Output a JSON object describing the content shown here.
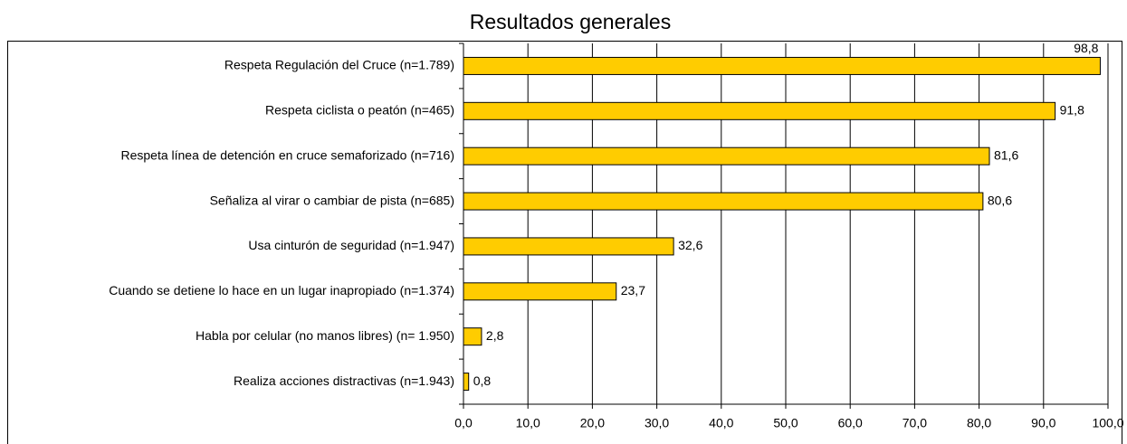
{
  "chart_data": {
    "type": "barh",
    "title": "Resultados generales",
    "categories": [
      "Respeta Regulación del Cruce (n=1.789)",
      "Respeta ciclista o peatón (n=465)",
      "Respeta línea de detención en cruce semaforizado (n=716)",
      "Señaliza al virar o cambiar de pista (n=685)",
      "Usa cinturón de seguridad (n=1.947)",
      "Cuando se detiene lo hace en un lugar inapropiado (n=1.374)",
      "Habla por celular (no manos libres) (n= 1.950)",
      "Realiza acciones distractivas (n=1.943)"
    ],
    "values": [
      98.8,
      91.8,
      81.6,
      80.6,
      32.6,
      23.7,
      2.8,
      0.8
    ],
    "value_labels": [
      "98,8",
      "91,8",
      "81,6",
      "80,6",
      "32,6",
      "23,7",
      "2,8",
      "0,8"
    ],
    "color": "#ffcc00",
    "xlim": [
      0,
      100
    ],
    "xticks": [
      {
        "value": 0,
        "label": "0,0"
      },
      {
        "value": 10,
        "label": "10,0"
      },
      {
        "value": 20,
        "label": "20,0"
      },
      {
        "value": 30,
        "label": "30,0"
      },
      {
        "value": 40,
        "label": "40,0"
      },
      {
        "value": 50,
        "label": "50,0"
      },
      {
        "value": 60,
        "label": "60,0"
      },
      {
        "value": 70,
        "label": "70,0"
      },
      {
        "value": 80,
        "label": "80,0"
      },
      {
        "value": 90,
        "label": "90,0"
      },
      {
        "value": 100,
        "label": "100,0"
      }
    ],
    "grid": true
  }
}
